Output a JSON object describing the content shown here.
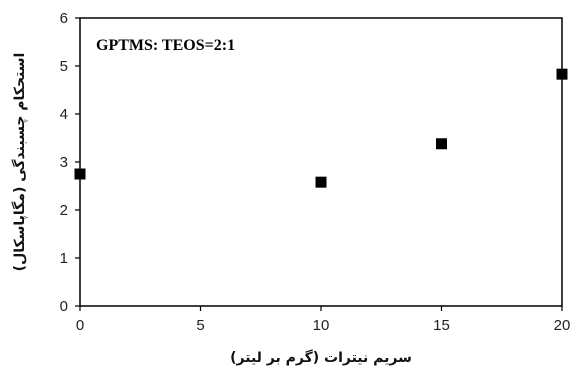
{
  "chart_data": {
    "type": "scatter",
    "title": "",
    "annotation": "GPTMS: TEOS=2:1",
    "xlabel": "سریم نیترات (گرم بر لیتر)",
    "ylabel": "استحکام چسبندگی (مگاپاسکال)",
    "xlim": [
      0,
      20
    ],
    "ylim": [
      0,
      6
    ],
    "xticks": [
      0,
      5,
      10,
      15,
      20
    ],
    "yticks": [
      0,
      1,
      2,
      3,
      4,
      5,
      6
    ],
    "grid": false,
    "marker": "square",
    "marker_color": "#000000",
    "series": [
      {
        "x": [
          0,
          10,
          15,
          20
        ],
        "y": [
          2.75,
          2.58,
          3.38,
          4.83
        ]
      }
    ]
  }
}
